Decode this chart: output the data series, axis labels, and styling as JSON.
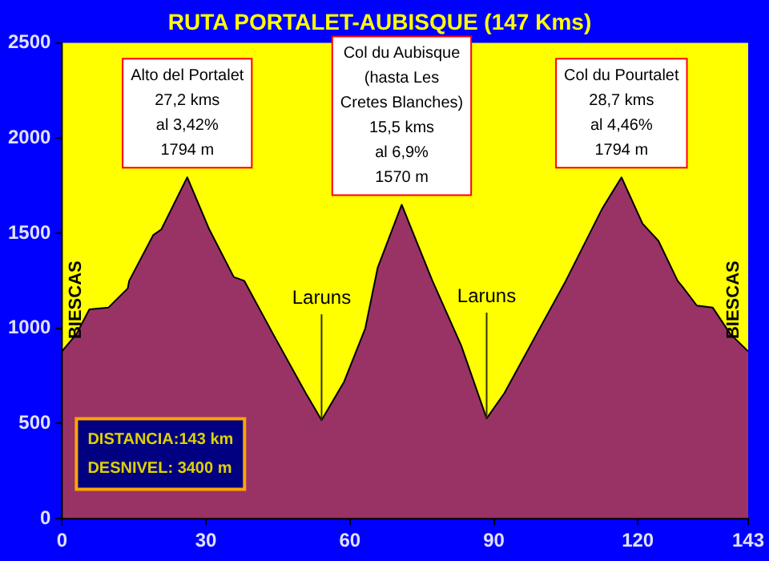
{
  "chart_data": {
    "type": "area",
    "title": "RUTA PORTALET-AUBISQUE (147 Kms)",
    "x": [
      0,
      3,
      5.7,
      9.7,
      13.7,
      14,
      19,
      20.7,
      26.1,
      30.7,
      35.8,
      38,
      44,
      50.8,
      54.1,
      58.8,
      63.2,
      65.8,
      70.8,
      77.2,
      83.2,
      88.5,
      92.2,
      98.9,
      105,
      112.6,
      116.6,
      121,
      124.3,
      128.3,
      129.3,
      132.3,
      135.6,
      139.3,
      143
    ],
    "series": [
      {
        "color": "#993366",
        "values": [
          880,
          970,
          1100,
          1110,
          1210,
          1250,
          1490,
          1520,
          1794,
          1520,
          1270,
          1250,
          970,
          660,
          518,
          720,
          1000,
          1320,
          1650,
          1250,
          910,
          527,
          660,
          970,
          1250,
          1630,
          1794,
          1550,
          1460,
          1250,
          1220,
          1120,
          1110,
          970,
          880
        ]
      }
    ],
    "xlim": [
      0,
      143
    ],
    "xticks": [
      0,
      30,
      60,
      90,
      120,
      143
    ],
    "ylim": [
      0,
      2500
    ],
    "yticks": [
      0,
      500,
      1000,
      1500,
      2000,
      2500
    ],
    "grid": false,
    "legend": false,
    "marker": "none",
    "line_style": "solid",
    "annotations": [
      {
        "text": "Alto del Portalet\n27,2 kms\nal 3,42%\n1794 m",
        "x": 26.1,
        "y": 1794
      },
      {
        "text": "Col du Aubisque\n(hasta Les\nCretes Blanches)\n15,5 kms\nal 6,9%\n1570 m",
        "x": 70.8,
        "y": 1650
      },
      {
        "text": "Col du Pourtalet\n28,7 kms\nal 4,46%\n1794 m",
        "x": 116.6,
        "y": 1794
      },
      {
        "text": "Laruns",
        "x": 54.1,
        "y": 518
      },
      {
        "text": "Laruns",
        "x": 88.5,
        "y": 527
      },
      "BIESCAS",
      "BIESCAS",
      "DISTANCIA:143 km",
      "DESNIVEL: 3400 m"
    ]
  }
}
